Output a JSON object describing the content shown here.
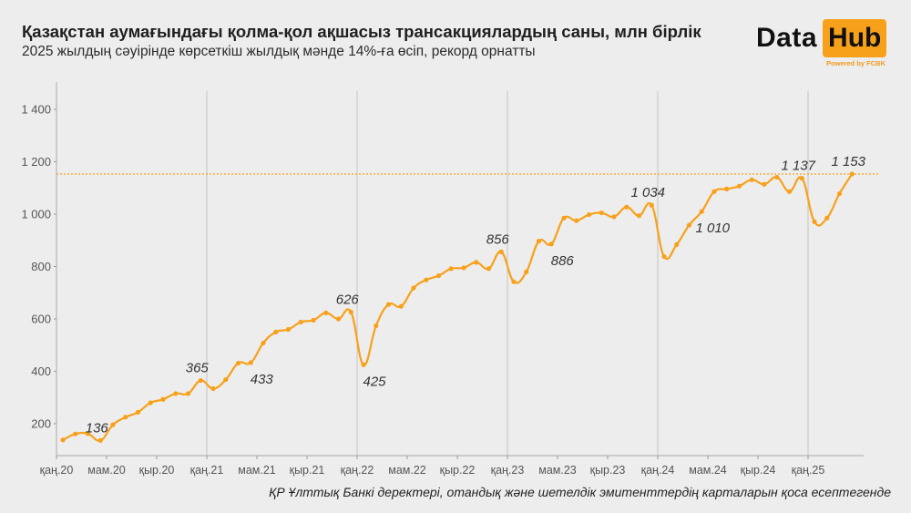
{
  "header": {
    "title": "Қазақстан аумағындағы қолма-қол ақшасыз трансакциялардың саны, млн бірлік",
    "subtitle": "2025 жылдың сәуірінде көрсеткіш жылдық мәнде 14%-ға өсіп, рекорд орнатты"
  },
  "logo": {
    "data_text": "Data",
    "hub_text": "Hub",
    "powered_text": "Powered by FCBK",
    "accent_color": "#f7a11a"
  },
  "footer": {
    "source": "ҚР Ұлттық Банкі деректері, отандық және шетелдік эмитенттердің карталарын қоса есептегенде"
  },
  "chart_data": {
    "type": "line",
    "title": "Қазақстан аумағындағы қолма-қол ақшасыз трансакциялардың саны, млн бірлік",
    "subtitle": "2025 жылдың сәуірінде көрсеткіш жылдық мәнде 14%-ға өсіп, рекорд орнатты",
    "xlabel": "",
    "ylabel": "",
    "ylim": [
      100,
      1450
    ],
    "yticks": [
      200,
      400,
      600,
      800,
      1000,
      1200,
      1400
    ],
    "ytick_labels": [
      "200",
      "400",
      "600",
      "800",
      "1 000",
      "1 200",
      "1 400"
    ],
    "xtick_labels": [
      "қаң.20",
      "мам.20",
      "қыр.20",
      "қаң.21",
      "мам.21",
      "қыр.21",
      "қаң.22",
      "мам.22",
      "қыр.22",
      "қаң.23",
      "мам.23",
      "қыр.23",
      "қаң.24",
      "мам.24",
      "қыр.24",
      "қаң.25"
    ],
    "xtick_month_index": [
      0,
      4,
      8,
      12,
      16,
      20,
      24,
      28,
      32,
      36,
      40,
      44,
      48,
      52,
      56,
      60
    ],
    "vertical_gridlines_at": [
      "қаң.21",
      "қаң.22",
      "қаң.23",
      "қаң.24",
      "қаң.25"
    ],
    "reference_line": {
      "value": 1153,
      "style": "dotted",
      "color": "#f7a11a"
    },
    "line_color": "#f7a11a",
    "x_start": "2020-01",
    "x_end": "2025-04",
    "series": [
      {
        "name": "Трансакциялар саны, млн бірлік",
        "values": [
          138,
          161,
          162,
          136,
          196,
          225,
          244,
          280,
          293,
          315,
          315,
          365,
          334,
          368,
          431,
          433,
          508,
          550,
          560,
          588,
          595,
          623,
          600,
          626,
          425,
          574,
          655,
          648,
          718,
          749,
          765,
          792,
          795,
          816,
          792,
          856,
          742,
          780,
          897,
          886,
          985,
          975,
          998,
          1005,
          990,
          1027,
          994,
          1034,
          838,
          884,
          958,
          1010,
          1086,
          1096,
          1107,
          1131,
          1114,
          1141,
          1086,
          1137,
          971,
          985,
          1078,
          1153
        ]
      }
    ],
    "annotations": [
      {
        "index": 3,
        "label": "136",
        "pos": "above"
      },
      {
        "index": 11,
        "label": "365",
        "pos": "above"
      },
      {
        "index": 15,
        "label": "433",
        "pos": "below"
      },
      {
        "index": 23,
        "label": "626",
        "pos": "above"
      },
      {
        "index": 24,
        "label": "425",
        "pos": "below"
      },
      {
        "index": 35,
        "label": "856",
        "pos": "above"
      },
      {
        "index": 39,
        "label": "886",
        "pos": "below"
      },
      {
        "index": 47,
        "label": "1 034",
        "pos": "above"
      },
      {
        "index": 51,
        "label": "1 010",
        "pos": "below"
      },
      {
        "index": 59,
        "label": "1 137",
        "pos": "above"
      },
      {
        "index": 63,
        "label": "1 153",
        "pos": "above"
      }
    ]
  }
}
